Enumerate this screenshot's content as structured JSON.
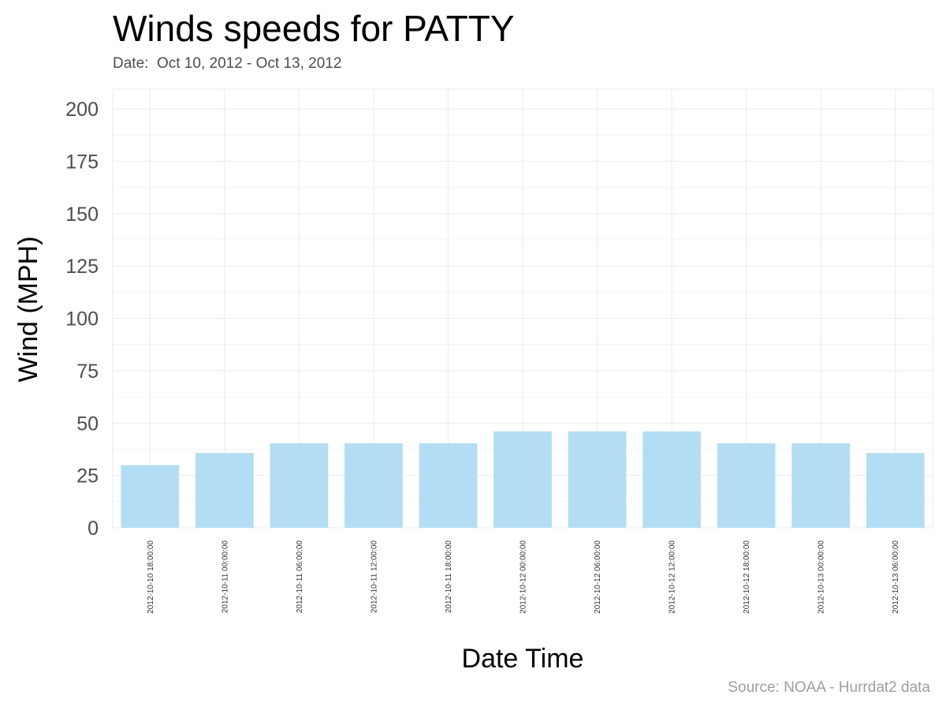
{
  "chart_data": {
    "type": "bar",
    "title": "Winds speeds for PATTY",
    "subtitle": "Date:  Oct 10, 2012 - Oct 13, 2012",
    "caption": "Source: NOAA - Hurrdat2 data",
    "xlabel": "Date Time",
    "ylabel": "Wind (MPH)",
    "categories": [
      "2012-10-10 18:00:00",
      "2012-10-11 00:00:00",
      "2012-10-11 06:00:00",
      "2012-10-11 12:00:00",
      "2012-10-11 18:00:00",
      "2012-10-12 00:00:00",
      "2012-10-12 06:00:00",
      "2012-10-12 12:00:00",
      "2012-10-12 18:00:00",
      "2012-10-13 00:00:00",
      "2012-10-13 06:00:00"
    ],
    "values": [
      29.9,
      35.7,
      40.3,
      40.3,
      40.3,
      46.0,
      46.0,
      46.0,
      40.3,
      40.3,
      35.7
    ],
    "ylim": [
      0,
      200
    ],
    "yticks": [
      0,
      25,
      50,
      75,
      100,
      125,
      150,
      175,
      200
    ],
    "grid": true,
    "legend": "none",
    "bar_color": "#b3ddf2",
    "grid_color": "#ebebeb",
    "panel_border_color": "#ebebeb"
  }
}
